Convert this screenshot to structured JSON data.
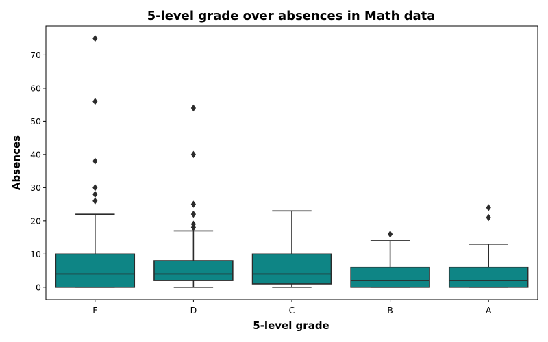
{
  "chart_data": {
    "type": "boxplot",
    "title": "5-level grade over absences in Math data",
    "xlabel": "5-level grade",
    "ylabel": "Absences",
    "ylim": [
      -3.75,
      78.75
    ],
    "yticks": [
      0,
      10,
      20,
      30,
      40,
      50,
      60,
      70
    ],
    "categories": [
      "F",
      "D",
      "C",
      "B",
      "A"
    ],
    "box_color": "#0e8585",
    "line_color": "#2b2b2b",
    "boxes": [
      {
        "category": "F",
        "whisker_low": 0,
        "q1": 0,
        "median": 4,
        "q3": 10,
        "whisker_high": 22,
        "outliers": [
          26,
          28,
          30,
          38,
          56,
          75
        ]
      },
      {
        "category": "D",
        "whisker_low": 0,
        "q1": 2,
        "median": 4,
        "q3": 8,
        "whisker_high": 17,
        "outliers": [
          18,
          19,
          22,
          25,
          40,
          54
        ]
      },
      {
        "category": "C",
        "whisker_low": 0,
        "q1": 1,
        "median": 4,
        "q3": 10,
        "whisker_high": 23,
        "outliers": []
      },
      {
        "category": "B",
        "whisker_low": 0,
        "q1": 0,
        "median": 2,
        "q3": 6,
        "whisker_high": 14,
        "outliers": [
          16
        ]
      },
      {
        "category": "A",
        "whisker_low": 0,
        "q1": 0,
        "median": 2,
        "q3": 6,
        "whisker_high": 13,
        "outliers": [
          21,
          24
        ]
      }
    ]
  }
}
